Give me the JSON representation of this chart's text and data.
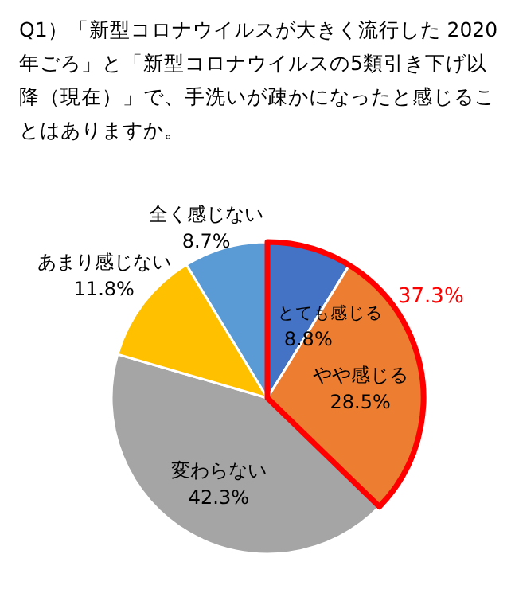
{
  "chart_data": {
    "type": "pie",
    "title": "Q1）「新型コロナウイルスが大きく流行した 2020 年ごろ」と「新型コロナウイルスの5類引き下げ以降（現在）」で、手洗いが疎かになったと感じることはありますか。",
    "categories": [
      "とても感じる",
      "やや感じる",
      "変わらない",
      "あまり感じない",
      "全く感じない"
    ],
    "values": [
      8.8,
      28.5,
      42.3,
      11.8,
      8.7
    ],
    "colors": [
      "#4472c4",
      "#ed7d31",
      "#a5a5a5",
      "#ffc000",
      "#5b9bd5"
    ],
    "value_labels": [
      "8.8%",
      "28.5%",
      "42.3%",
      "11.8%",
      "8.7%"
    ],
    "annotations": [
      "37.3%"
    ]
  }
}
